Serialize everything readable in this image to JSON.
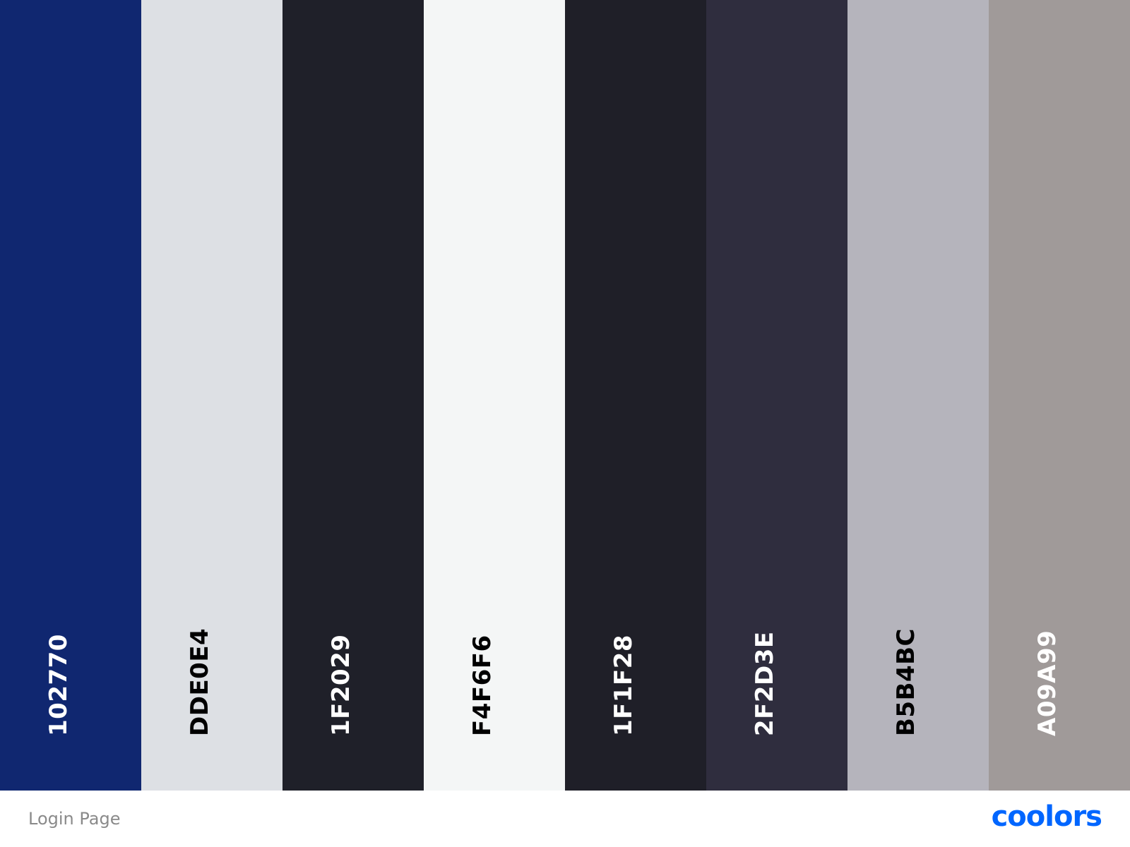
{
  "palette": {
    "swatches": [
      {
        "hex": "102770",
        "color": "#102770",
        "text_color": "#ffffff"
      },
      {
        "hex": "DDE0E4",
        "color": "#DDE0E4",
        "text_color": "#000000"
      },
      {
        "hex": "1F2029",
        "color": "#1F2029",
        "text_color": "#ffffff"
      },
      {
        "hex": "F4F6F6",
        "color": "#F4F6F6",
        "text_color": "#000000"
      },
      {
        "hex": "1F1F28",
        "color": "#1F1F28",
        "text_color": "#ffffff"
      },
      {
        "hex": "2F2D3E",
        "color": "#2F2D3E",
        "text_color": "#ffffff"
      },
      {
        "hex": "B5B4BC",
        "color": "#B5B4BC",
        "text_color": "#000000"
      },
      {
        "hex": "A09A99",
        "color": "#A09A99",
        "text_color": "#ffffff"
      }
    ]
  },
  "footer": {
    "palette_name": "Login Page",
    "brand": "coolors",
    "brand_color": "#0066ff"
  }
}
